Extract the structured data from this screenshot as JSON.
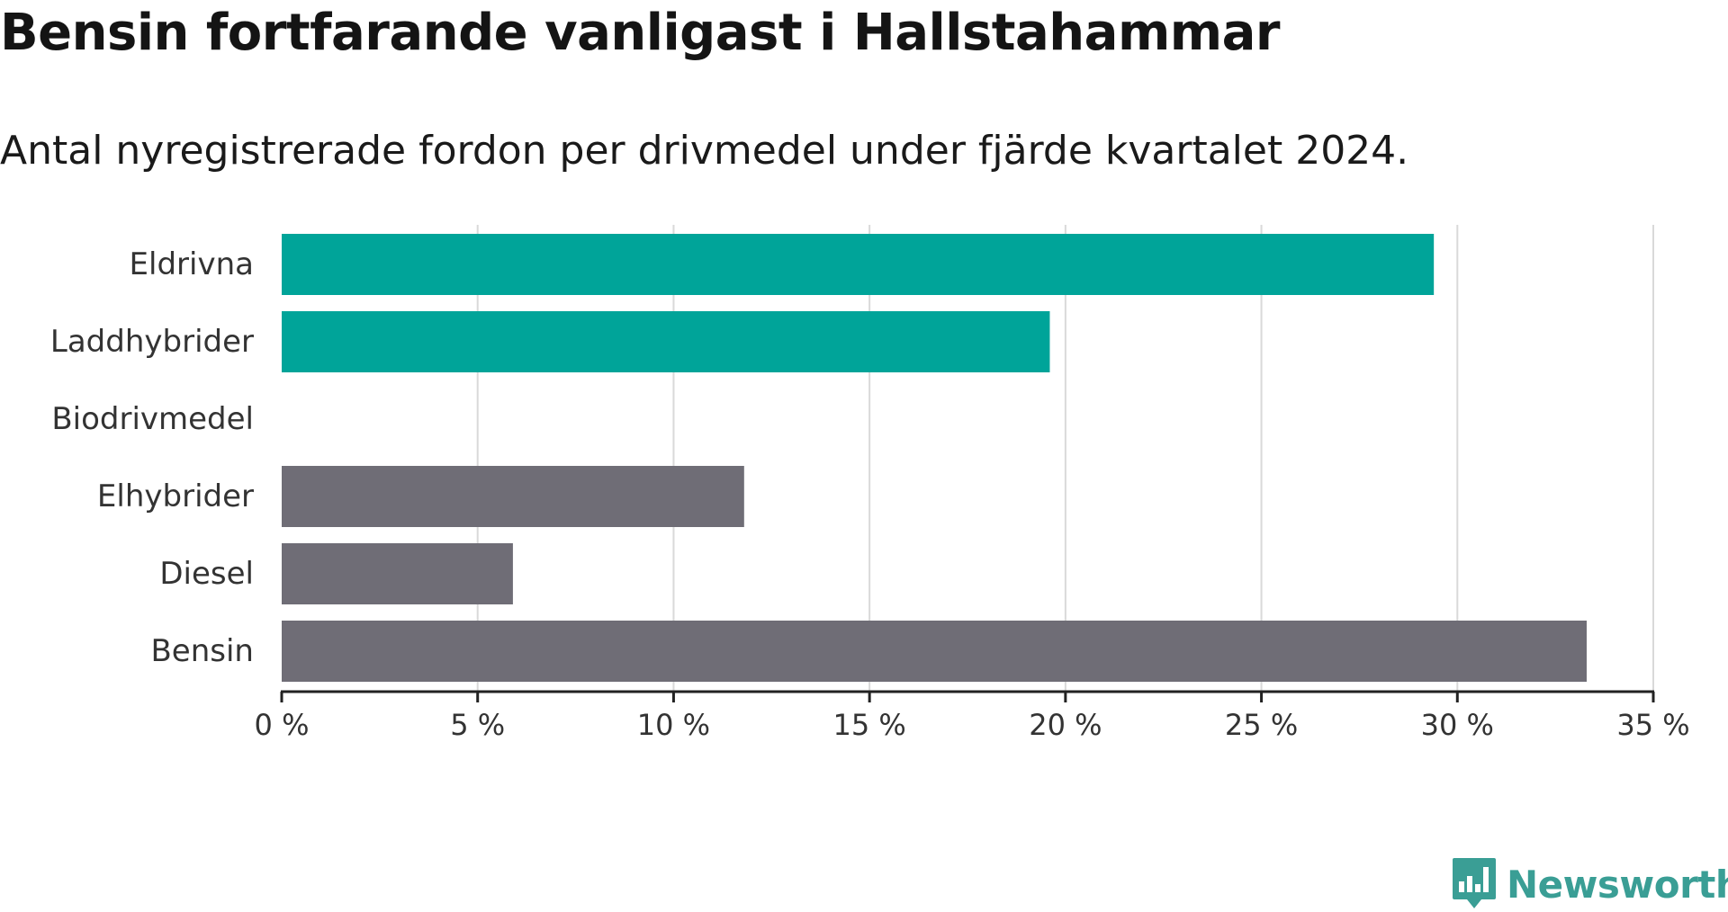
{
  "header": {
    "title": "Bensin fortfarande vanligast i Hallstahammar",
    "subtitle": "Antal nyregistrerade fordon per drivmedel under fjärde kvartalet 2024."
  },
  "brand": {
    "name": "Newsworthy",
    "icon": "newsworthy-logo-icon",
    "color": "#3a9e95"
  },
  "colors": {
    "highlight": "#00a499",
    "neutral": "#6f6d76",
    "grid": "#d9d9d9",
    "axis": "#222222"
  },
  "chart_data": {
    "type": "bar",
    "orientation": "horizontal",
    "categories": [
      "Eldrivna",
      "Laddhybrider",
      "Biodrivmedel",
      "Elhybrider",
      "Diesel",
      "Bensin"
    ],
    "values": [
      29.4,
      19.6,
      0,
      11.8,
      5.9,
      33.3
    ],
    "bar_colors": [
      "#00a499",
      "#00a499",
      "#00a499",
      "#6f6d76",
      "#6f6d76",
      "#6f6d76"
    ],
    "xlim": [
      0,
      35
    ],
    "xticks": [
      0,
      5,
      10,
      15,
      20,
      25,
      30,
      35
    ],
    "xtick_labels": [
      "0 %",
      "5 %",
      "10 %",
      "15 %",
      "20 %",
      "25 %",
      "30 %",
      "35 %"
    ],
    "grid": true,
    "xlabel": "",
    "ylabel": ""
  }
}
